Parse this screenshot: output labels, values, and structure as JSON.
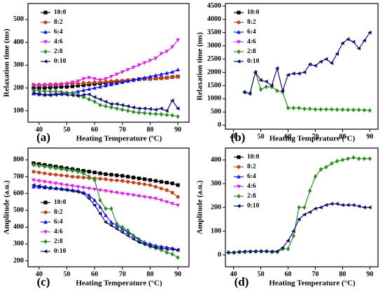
{
  "chart_data": [
    {
      "type": "line",
      "panel_label": "(a)",
      "xlabel": "Heating Temperature (ºC)",
      "ylabel": "Relaxation time (ms)",
      "xlim": [
        36,
        94
      ],
      "ylim": [
        50,
        570
      ],
      "xticks": [
        40,
        50,
        60,
        70,
        80,
        90
      ],
      "yticks": [
        100,
        200,
        300,
        400,
        500
      ],
      "legend": "upper left",
      "x": [
        38,
        40,
        42,
        44,
        46,
        48,
        50,
        52,
        54,
        56,
        58,
        60,
        62,
        64,
        66,
        68,
        70,
        72,
        74,
        76,
        78,
        80,
        82,
        84,
        86,
        88,
        90
      ],
      "series": [
        {
          "name": "10:0",
          "color": "#000000",
          "marker": "square",
          "values": [
            200,
            200,
            200,
            202,
            203,
            205,
            205,
            207,
            210,
            212,
            215,
            218,
            220,
            222,
            225,
            228,
            230,
            232,
            235,
            238,
            240,
            240,
            242,
            243,
            245,
            248,
            250
          ]
        },
        {
          "name": "8:2",
          "color": "#c8401a",
          "marker": "circle",
          "values": [
            215,
            215,
            215,
            216,
            217,
            218,
            218,
            220,
            220,
            222,
            222,
            225,
            225,
            228,
            230,
            232,
            232,
            235,
            235,
            238,
            240,
            240,
            242,
            242,
            245,
            248,
            250
          ]
        },
        {
          "name": "6:4",
          "color": "#1010ee",
          "marker": "triangle-up",
          "values": [
            175,
            172,
            170,
            172,
            175,
            175,
            178,
            180,
            185,
            190,
            195,
            200,
            205,
            210,
            215,
            220,
            225,
            230,
            235,
            240,
            245,
            250,
            255,
            260,
            265,
            270,
            280
          ]
        },
        {
          "name": "4:6",
          "color": "#e020e0",
          "marker": "triangle-down",
          "values": [
            210,
            210,
            210,
            210,
            212,
            215,
            220,
            225,
            230,
            240,
            245,
            240,
            235,
            240,
            250,
            260,
            270,
            280,
            290,
            300,
            310,
            320,
            330,
            350,
            360,
            380,
            410
          ]
        },
        {
          "name": "2:8",
          "color": "#2e8b22",
          "marker": "diamond",
          "values": [
            190,
            188,
            185,
            185,
            185,
            183,
            180,
            178,
            170,
            160,
            150,
            140,
            125,
            120,
            115,
            110,
            105,
            100,
            95,
            92,
            90,
            88,
            86,
            85,
            82,
            80,
            75
          ]
        },
        {
          "name": "0:10",
          "color": "#101070",
          "marker": "triangle-left",
          "values": [
            178,
            175,
            170,
            168,
            170,
            172,
            170,
            168,
            165,
            170,
            172,
            160,
            150,
            140,
            130,
            130,
            125,
            120,
            115,
            110,
            110,
            108,
            105,
            110,
            100,
            145,
            110
          ]
        }
      ]
    },
    {
      "type": "line",
      "panel_label": "(b)",
      "xlabel": "Heating Temperature (ºC)",
      "ylabel": "Relaxation time (ms)",
      "xlim": [
        37,
        93
      ],
      "ylim": [
        -150,
        4600
      ],
      "xticks": [
        40,
        50,
        60,
        70,
        80,
        90
      ],
      "yticks": [
        0,
        500,
        1000,
        1500,
        2000,
        2500,
        3000,
        3500,
        4000,
        4500
      ],
      "legend": "upper left",
      "x": [
        44,
        46,
        48,
        50,
        52,
        54,
        56,
        58,
        60,
        62,
        64,
        66,
        68,
        70,
        72,
        74,
        76,
        78,
        80,
        82,
        84,
        86,
        88,
        90
      ],
      "series": [
        {
          "name": "10:0",
          "color": "#000000",
          "marker": "square",
          "values": [
            null,
            null,
            null,
            null,
            null,
            null,
            null,
            null,
            null,
            null,
            null,
            null,
            null,
            null,
            null,
            null,
            null,
            null,
            null,
            null,
            null,
            null,
            null,
            null
          ]
        },
        {
          "name": "8:2",
          "color": "#c8401a",
          "marker": "circle",
          "values": [
            null,
            null,
            null,
            null,
            null,
            null,
            null,
            null,
            null,
            null,
            null,
            null,
            null,
            null,
            null,
            null,
            null,
            null,
            null,
            null,
            null,
            null,
            null,
            null
          ]
        },
        {
          "name": "6:4",
          "color": "#1010ee",
          "marker": "triangle-up",
          "values": [
            null,
            null,
            null,
            null,
            null,
            null,
            null,
            null,
            null,
            null,
            null,
            null,
            null,
            null,
            null,
            null,
            null,
            null,
            null,
            null,
            null,
            null,
            null,
            null
          ]
        },
        {
          "name": "4:6",
          "color": "#e020e0",
          "marker": "triangle-down",
          "values": [
            null,
            null,
            null,
            null,
            null,
            null,
            null,
            null,
            null,
            null,
            null,
            null,
            null,
            null,
            null,
            null,
            null,
            null,
            null,
            null,
            null,
            null,
            null,
            null
          ]
        },
        {
          "name": "2:8",
          "color": "#2e8b22",
          "marker": "diamond",
          "values": [
            1250,
            1200,
            2000,
            1350,
            1450,
            1450,
            1300,
            1250,
            650,
            650,
            650,
            620,
            620,
            600,
            600,
            600,
            600,
            590,
            590,
            580,
            580,
            580,
            570,
            560
          ]
        },
        {
          "name": "0:10",
          "color": "#101070",
          "marker": "triangle-left",
          "values": [
            1250,
            1200,
            2000,
            1700,
            1650,
            1500,
            2150,
            1300,
            1900,
            1950,
            1950,
            2000,
            2300,
            2250,
            2400,
            2500,
            2350,
            2700,
            3100,
            3250,
            3150,
            2900,
            3200,
            3500
          ]
        }
      ]
    },
    {
      "type": "line",
      "panel_label": "(c)",
      "xlabel": "Heating Temperature (°C)",
      "ylabel": "Amplitude (a.u.)",
      "xlim": [
        36,
        94
      ],
      "ylim": [
        165,
        870
      ],
      "xticks": [
        40,
        50,
        60,
        70,
        80,
        90
      ],
      "yticks": [
        200,
        300,
        400,
        500,
        600,
        700,
        800
      ],
      "legend": "lower left",
      "x": [
        38,
        40,
        42,
        44,
        46,
        48,
        50,
        52,
        54,
        56,
        58,
        60,
        62,
        64,
        66,
        68,
        70,
        72,
        74,
        76,
        78,
        80,
        82,
        84,
        86,
        88,
        90
      ],
      "series": [
        {
          "name": "10:0",
          "color": "#000000",
          "marker": "square",
          "values": [
            780,
            775,
            770,
            765,
            760,
            755,
            750,
            745,
            740,
            735,
            730,
            725,
            720,
            715,
            712,
            708,
            705,
            700,
            695,
            690,
            685,
            680,
            675,
            670,
            665,
            660,
            650
          ]
        },
        {
          "name": "8:2",
          "color": "#c8401a",
          "marker": "circle",
          "values": [
            730,
            725,
            720,
            715,
            712,
            708,
            705,
            700,
            698,
            695,
            692,
            690,
            688,
            685,
            680,
            678,
            675,
            670,
            665,
            660,
            655,
            650,
            640,
            630,
            620,
            605,
            580
          ]
        },
        {
          "name": "6:4",
          "color": "#1010ee",
          "marker": "triangle-up",
          "values": [
            640,
            638,
            635,
            632,
            630,
            628,
            625,
            620,
            615,
            605,
            590,
            560,
            520,
            470,
            430,
            410,
            390,
            370,
            350,
            330,
            310,
            300,
            290,
            285,
            280,
            275,
            265
          ]
        },
        {
          "name": "4:6",
          "color": "#e020e0",
          "marker": "triangle-down",
          "values": [
            680,
            675,
            670,
            665,
            660,
            655,
            650,
            645,
            640,
            635,
            630,
            625,
            620,
            615,
            610,
            605,
            600,
            595,
            590,
            585,
            580,
            575,
            570,
            560,
            550,
            540,
            530
          ]
        },
        {
          "name": "2:8",
          "color": "#2e8b22",
          "marker": "diamond",
          "values": [
            770,
            765,
            760,
            755,
            750,
            745,
            740,
            735,
            730,
            720,
            700,
            680,
            560,
            510,
            510,
            420,
            400,
            380,
            350,
            320,
            300,
            285,
            275,
            265,
            250,
            240,
            220
          ]
        },
        {
          "name": "0:10",
          "color": "#101070",
          "marker": "triangle-left",
          "values": [
            650,
            645,
            640,
            635,
            630,
            625,
            620,
            615,
            610,
            600,
            570,
            530,
            480,
            430,
            410,
            390,
            370,
            350,
            330,
            310,
            300,
            290,
            280,
            275,
            270,
            268,
            265
          ]
        }
      ]
    },
    {
      "type": "line",
      "panel_label": "(d)",
      "xlabel": "Heating Temperature (°C)",
      "ylabel": "Amplitude (a.u.)",
      "xlim": [
        37,
        93
      ],
      "ylim": [
        -50,
        450
      ],
      "xticks": [
        40,
        50,
        60,
        70,
        80,
        90
      ],
      "yticks": [
        0,
        100,
        200,
        300,
        400
      ],
      "legend": "upper left",
      "x": [
        38,
        40,
        42,
        44,
        46,
        48,
        50,
        52,
        54,
        56,
        58,
        60,
        62,
        64,
        66,
        68,
        70,
        72,
        74,
        76,
        78,
        80,
        82,
        84,
        86,
        88,
        90
      ],
      "series": [
        {
          "name": "10:0",
          "color": "#000000",
          "marker": "square",
          "values": [
            null,
            null,
            null,
            null,
            null,
            null,
            null,
            null,
            null,
            null,
            null,
            null,
            null,
            null,
            null,
            null,
            null,
            null,
            null,
            null,
            null,
            null,
            null,
            null,
            null,
            null,
            null
          ]
        },
        {
          "name": "8:2",
          "color": "#c8401a",
          "marker": "circle",
          "values": [
            null,
            null,
            null,
            null,
            null,
            null,
            null,
            null,
            null,
            null,
            null,
            null,
            null,
            null,
            null,
            null,
            null,
            null,
            null,
            null,
            null,
            null,
            null,
            null,
            null,
            null,
            null
          ]
        },
        {
          "name": "6:4",
          "color": "#1010ee",
          "marker": "triangle-up",
          "values": [
            null,
            null,
            null,
            null,
            null,
            null,
            null,
            null,
            null,
            null,
            null,
            null,
            null,
            null,
            null,
            null,
            null,
            null,
            null,
            null,
            null,
            null,
            null,
            null,
            null,
            null,
            null
          ]
        },
        {
          "name": "4:6",
          "color": "#e020e0",
          "marker": "triangle-down",
          "values": [
            null,
            null,
            null,
            null,
            null,
            null,
            null,
            null,
            null,
            null,
            null,
            null,
            null,
            null,
            null,
            null,
            null,
            null,
            null,
            null,
            null,
            null,
            null,
            null,
            null,
            null,
            null
          ]
        },
        {
          "name": "2:8",
          "color": "#2e8b22",
          "marker": "diamond",
          "values": [
            10,
            10,
            12,
            12,
            14,
            14,
            15,
            15,
            12,
            12,
            25,
            25,
            80,
            200,
            200,
            270,
            330,
            360,
            370,
            385,
            395,
            400,
            405,
            410,
            405,
            405,
            405
          ]
        },
        {
          "name": "0:10",
          "color": "#101070",
          "marker": "triangle-left",
          "values": [
            10,
            10,
            12,
            14,
            14,
            15,
            15,
            15,
            14,
            15,
            30,
            60,
            100,
            150,
            170,
            180,
            195,
            200,
            210,
            215,
            215,
            210,
            210,
            210,
            205,
            200,
            200
          ]
        }
      ]
    }
  ]
}
